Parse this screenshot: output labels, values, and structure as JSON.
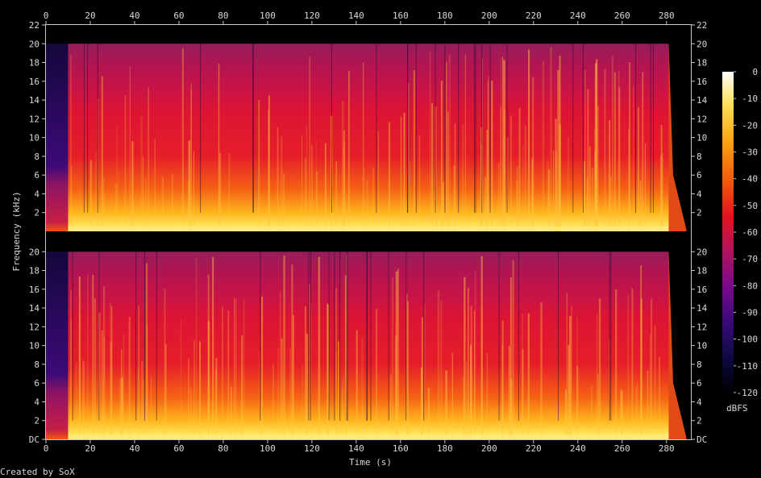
{
  "chart_data": {
    "type": "heatmap",
    "title": "",
    "xlabel": "Time (s)",
    "ylabel": "Frequency (kHz)",
    "colorbar_label": "dBFS",
    "footer": "Created by SoX",
    "x_ticks": [
      0,
      20,
      40,
      60,
      80,
      100,
      120,
      140,
      160,
      180,
      200,
      220,
      240,
      260,
      280
    ],
    "xlim": [
      0,
      291
    ],
    "y_ticks": [
      "DC",
      "2",
      "4",
      "6",
      "8",
      "10",
      "12",
      "14",
      "16",
      "18",
      "20",
      "22"
    ],
    "ylim_khz": [
      0,
      22
    ],
    "colorbar_ticks": [
      "0",
      "-10",
      "-20",
      "-30",
      "-40",
      "-50",
      "-60",
      "-70",
      "-80",
      "-90",
      "-100",
      "-110",
      "-120"
    ],
    "colorbar_range_dbfs": [
      -120,
      0
    ],
    "channels": [
      {
        "name": ""
      },
      {
        "name": ""
      }
    ],
    "content_cutoff_khz": 20,
    "audio_start_s": 0,
    "audio_end_s": 289,
    "colors": {
      "background": "#000000",
      "text": "#d8d8d8",
      "axis": "#c8c8c8",
      "scale": [
        "#000000",
        "#0a0a3c",
        "#3a0a7a",
        "#780a8c",
        "#b4145a",
        "#e0141e",
        "#f05a0a",
        "#faa014",
        "#ffe05a",
        "#ffffff"
      ]
    }
  }
}
